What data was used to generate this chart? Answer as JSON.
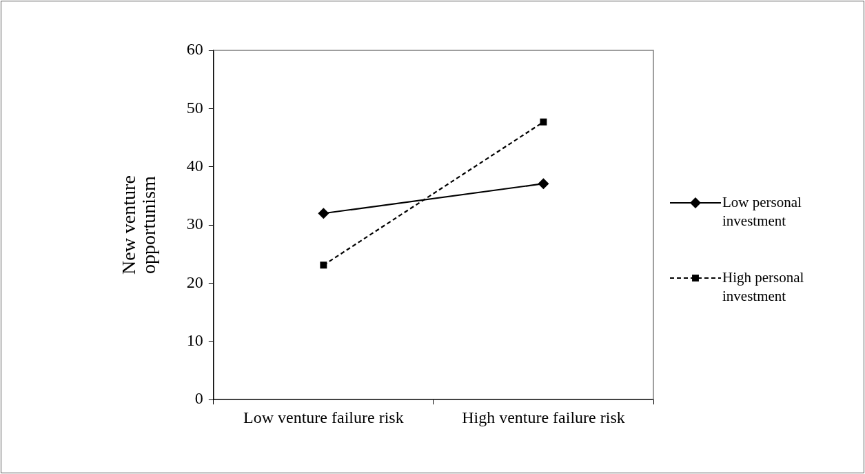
{
  "chart_data": {
    "type": "line",
    "ylabel": "New venture opportunism",
    "categories": [
      "Low venture failure risk",
      "High venture failure risk"
    ],
    "series": [
      {
        "name": "Low personal investment",
        "color": "#000000",
        "values": [
          32,
          37.1
        ],
        "marker": "diamond",
        "line_style": "solid"
      },
      {
        "name": "High personal investment",
        "color": "#000000",
        "values": [
          23.1,
          47.7
        ],
        "marker": "square",
        "line_style": "dashed"
      }
    ],
    "ylim": [
      0,
      60
    ],
    "yticks": [
      0,
      10,
      20,
      30,
      40,
      50,
      60
    ],
    "grid": false,
    "legend": "right"
  }
}
